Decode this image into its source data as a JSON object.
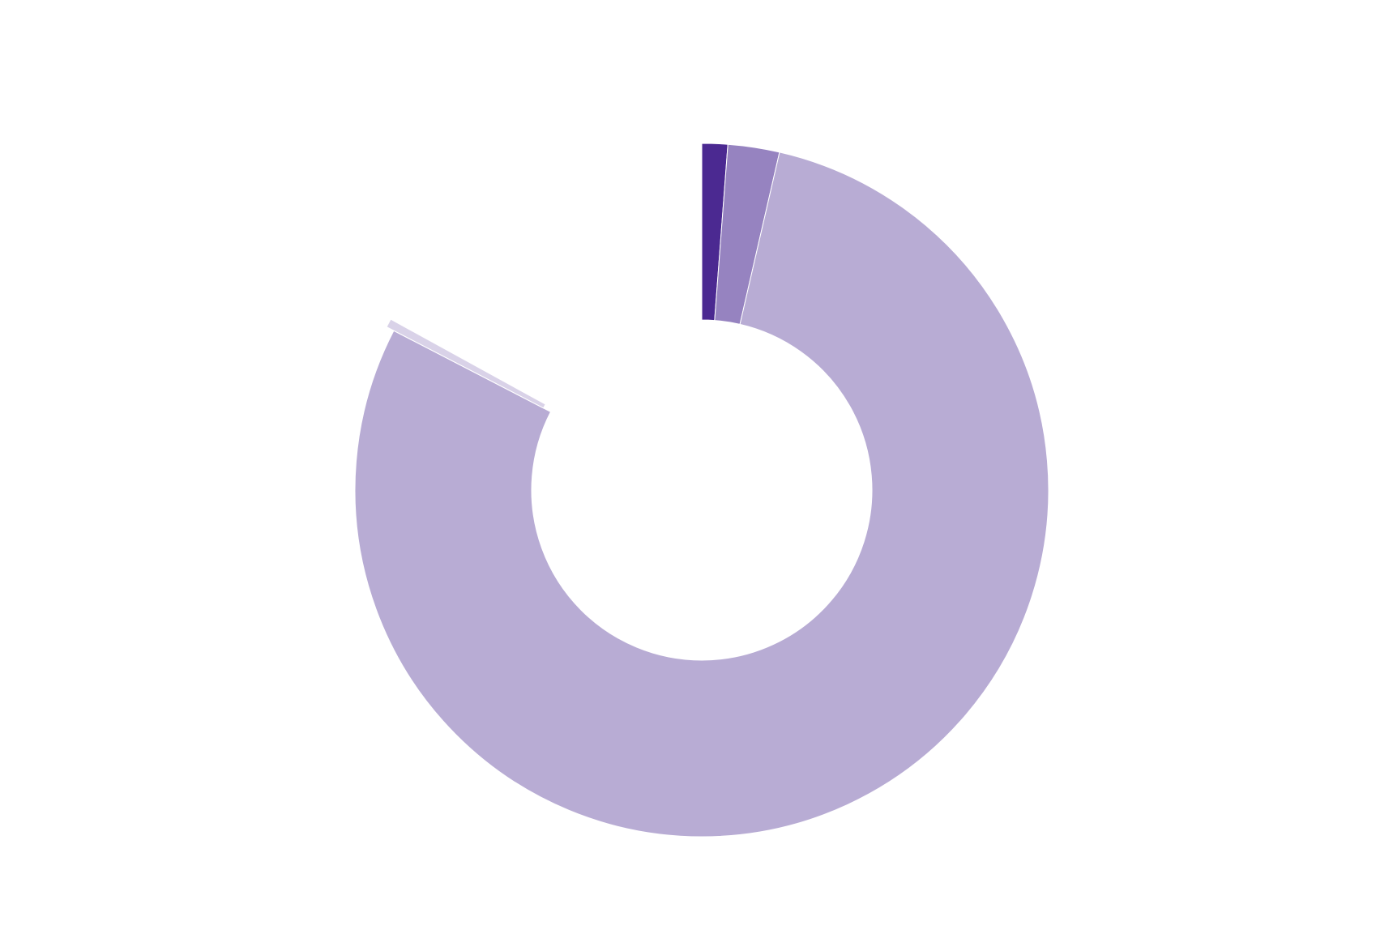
{
  "chart_data": {
    "type": "pie",
    "style": "donut",
    "legend": "none",
    "grid": false,
    "slices": [
      {
        "value": 1.2,
        "color": "#4b2991"
      },
      {
        "value": 2.4,
        "color": "#9683c0"
      },
      {
        "value": 79.0,
        "color": "#b8acd4"
      },
      {
        "value": 0.4,
        "color": "#d9d2e8",
        "exploded": true
      },
      {
        "value": 17.0,
        "color": "#ffffff",
        "exploded": true
      }
    ]
  }
}
